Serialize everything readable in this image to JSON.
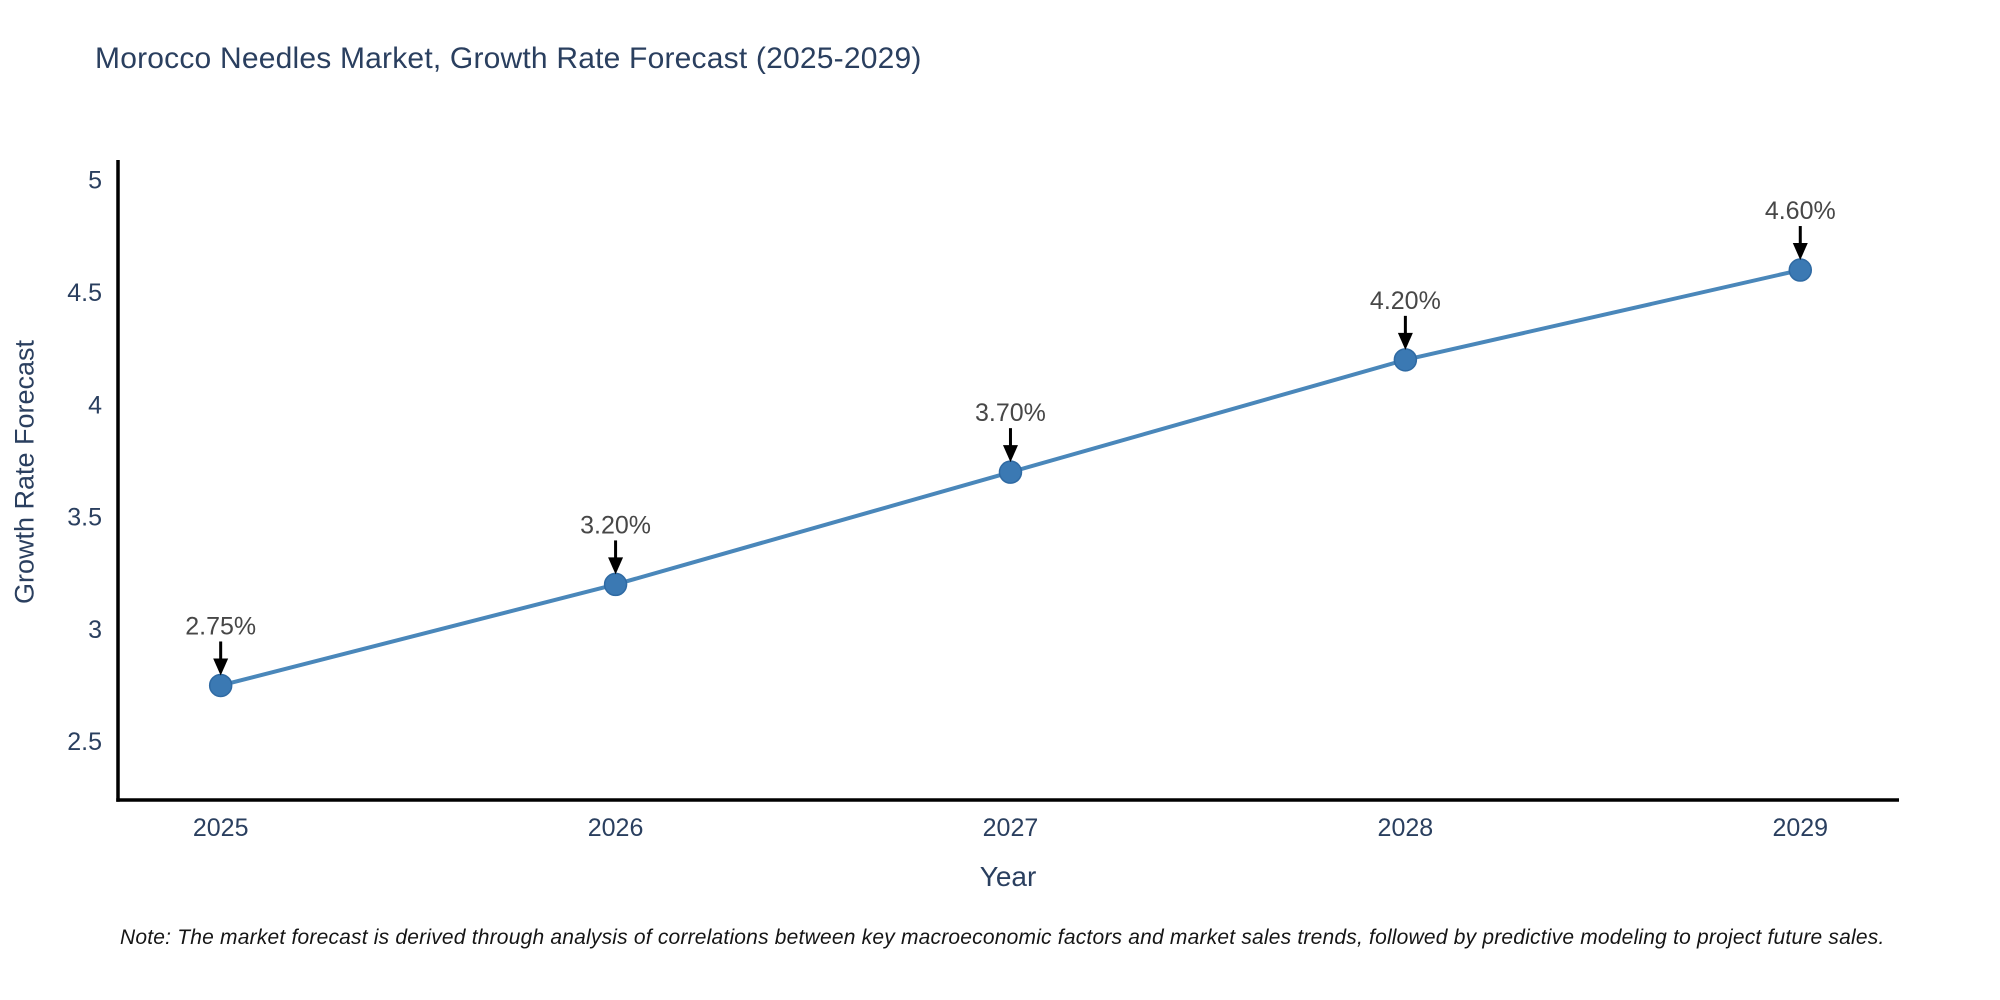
{
  "note": {
    "text": "Note: The market forecast is derived through analysis of correlations between key macroeconomic factors and market sales trends, followed by predictive modeling to project future sales."
  },
  "colors": {
    "line": "#4a87ba",
    "marker_fill": "#3b79b3",
    "marker_edge": "#2f6aa3",
    "axis_line": "#000000",
    "tick_text": "#2a3f5f",
    "annotation_text": "#474747",
    "arrow": "#000000",
    "title_text": "#2a3f5f",
    "background": "#ffffff"
  },
  "chart_data": {
    "type": "line",
    "title": "Morocco Needles Market, Growth Rate Forecast (2025-2029)",
    "xlabel": "Year",
    "ylabel": "Growth Rate Forecast",
    "x": [
      2025,
      2026,
      2027,
      2028,
      2029
    ],
    "values": [
      2.75,
      3.2,
      3.7,
      4.2,
      4.6
    ],
    "point_labels": [
      "2.75%",
      "3.20%",
      "3.70%",
      "4.20%",
      "4.60%"
    ],
    "xtick_labels": [
      "2025",
      "2026",
      "2027",
      "2028",
      "2029"
    ],
    "yticks": [
      2.5,
      3,
      3.5,
      4,
      4.5,
      5
    ],
    "ytick_labels": [
      "2.5",
      "3",
      "3.5",
      "4",
      "4.5",
      "5"
    ],
    "xlim": [
      2024.74,
      2029.25
    ],
    "ylim": [
      2.24,
      5.09
    ],
    "grid": false,
    "legend_position": "none",
    "series_name": "Growth Rate Forecast"
  }
}
